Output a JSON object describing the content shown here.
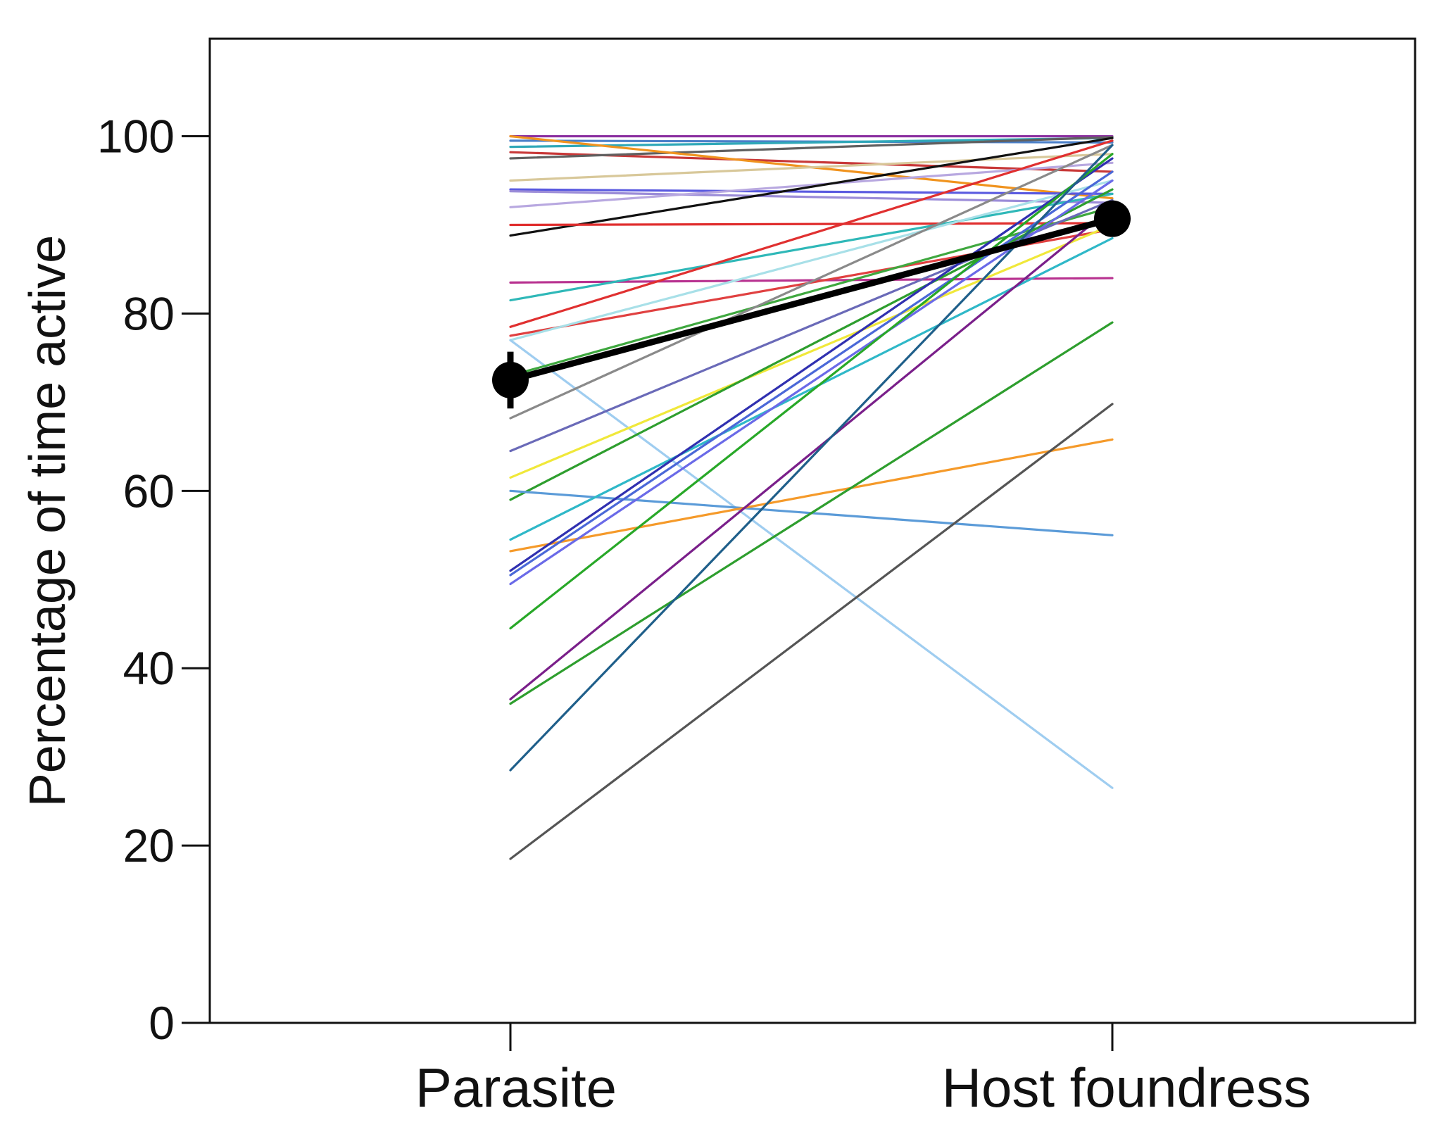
{
  "chart_data": {
    "type": "line",
    "title": "",
    "xlabel": "",
    "ylabel": "Percentage of time active",
    "categories": [
      "Parasite",
      "Host foundress"
    ],
    "ylim": [
      0,
      111
    ],
    "yticks": [
      0,
      20,
      40,
      60,
      80,
      100
    ],
    "grid": false,
    "legend": "none",
    "mean": {
      "values": [
        72.5,
        90.7
      ],
      "error": [
        3.2,
        1.5
      ],
      "color": "#000000"
    },
    "series": [
      {
        "values": [
          100,
          100
        ],
        "color": "#8B2FA0"
      },
      {
        "values": [
          99.5,
          99.3
        ],
        "color": "#4A7FC8"
      },
      {
        "values": [
          98.8,
          99.8
        ],
        "color": "#2FA8B8"
      },
      {
        "values": [
          98.2,
          96.0
        ],
        "color": "#C83838"
      },
      {
        "values": [
          97.5,
          99.9
        ],
        "color": "#606060"
      },
      {
        "values": [
          100,
          93.0
        ],
        "color": "#F0931E"
      },
      {
        "values": [
          95.0,
          98.0
        ],
        "color": "#D8C89A"
      },
      {
        "values": [
          94.0,
          93.5
        ],
        "color": "#5A5AE0"
      },
      {
        "values": [
          93.8,
          92.5
        ],
        "color": "#9B8CD8"
      },
      {
        "values": [
          92.0,
          97.0
        ],
        "color": "#B8A8E0"
      },
      {
        "values": [
          88.8,
          99.8
        ],
        "color": "#111111"
      },
      {
        "values": [
          90.0,
          90.2
        ],
        "color": "#E02E2E"
      },
      {
        "values": [
          83.5,
          84.0
        ],
        "color": "#B83290"
      },
      {
        "values": [
          81.5,
          93.5
        ],
        "color": "#2FB8B8"
      },
      {
        "values": [
          78.5,
          99.5
        ],
        "color": "#E03030"
      },
      {
        "values": [
          77.5,
          89.5
        ],
        "color": "#E04040"
      },
      {
        "values": [
          77.0,
          95.0
        ],
        "color": "#A8E0E8"
      },
      {
        "values": [
          77.0,
          26.5
        ],
        "color": "#9FCDF0"
      },
      {
        "values": [
          73.0,
          92.0
        ],
        "color": "#3FA83F"
      },
      {
        "values": [
          68.2,
          99.0
        ],
        "color": "#8A8A8A"
      },
      {
        "values": [
          64.5,
          92.8
        ],
        "color": "#6A6AB8"
      },
      {
        "values": [
          61.5,
          90.0
        ],
        "color": "#F0E83A"
      },
      {
        "values": [
          59.0,
          94.0
        ],
        "color": "#2E9E2E"
      },
      {
        "values": [
          60.0,
          55.0
        ],
        "color": "#5B9BD8"
      },
      {
        "values": [
          54.5,
          88.5
        ],
        "color": "#2FB8C8"
      },
      {
        "values": [
          53.2,
          65.8
        ],
        "color": "#F59A2A"
      },
      {
        "values": [
          51.0,
          97.5
        ],
        "color": "#3030B0"
      },
      {
        "values": [
          50.5,
          96.0
        ],
        "color": "#4A68D8"
      },
      {
        "values": [
          49.5,
          95.0
        ],
        "color": "#6A6AE8"
      },
      {
        "values": [
          44.5,
          98.0
        ],
        "color": "#28A828"
      },
      {
        "values": [
          36.5,
          92.0
        ],
        "color": "#7A1F8A"
      },
      {
        "values": [
          36.0,
          79.0
        ],
        "color": "#2E9E2E"
      },
      {
        "values": [
          28.5,
          99.0
        ],
        "color": "#1F5F8A"
      },
      {
        "values": [
          18.5,
          69.8
        ],
        "color": "#555555"
      }
    ]
  }
}
